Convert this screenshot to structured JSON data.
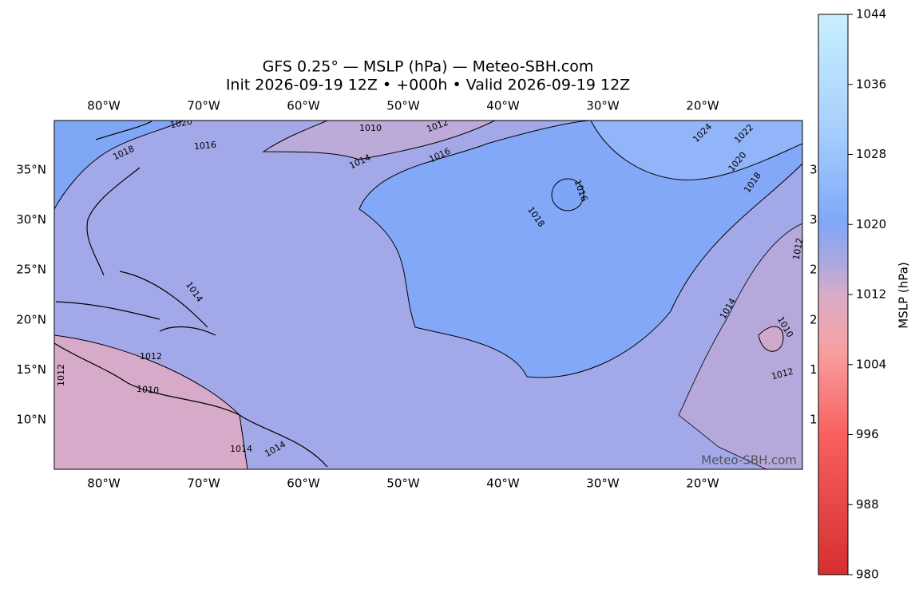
{
  "title": [
    "GFS 0.25° — MSLP (hPa) — Meteo-SBH.com",
    "Init 2026-09-19 12Z • +000h • Valid 2026-09-19 12Z"
  ],
  "lon_labels": [
    "80°W",
    "70°W",
    "60°W",
    "50°W",
    "40°W",
    "30°W",
    "20°W"
  ],
  "lat_labels": [
    "35°N",
    "30°N",
    "25°N",
    "20°N",
    "15°N",
    "10°N"
  ],
  "right_lat_labels": [
    "3",
    "3",
    "2",
    "2",
    "1",
    "1"
  ],
  "contour_labels": [
    "1010",
    "1012",
    "1020",
    "1018",
    "1016",
    "1014",
    "1016",
    "1024",
    "1022",
    "1020",
    "1018",
    "1016",
    "1018",
    "1014",
    "1012",
    "1010",
    "1012",
    "1014",
    "1014",
    "1014",
    "1010",
    "1012",
    "1012"
  ],
  "watermark": "Meteo-SBH.com",
  "colorbar": {
    "label": "MSLP (hPa)",
    "lim": [
      980,
      1044
    ],
    "ticks": [
      980,
      988,
      996,
      1004,
      1012,
      1020,
      1028,
      1036,
      1044
    ]
  }
}
